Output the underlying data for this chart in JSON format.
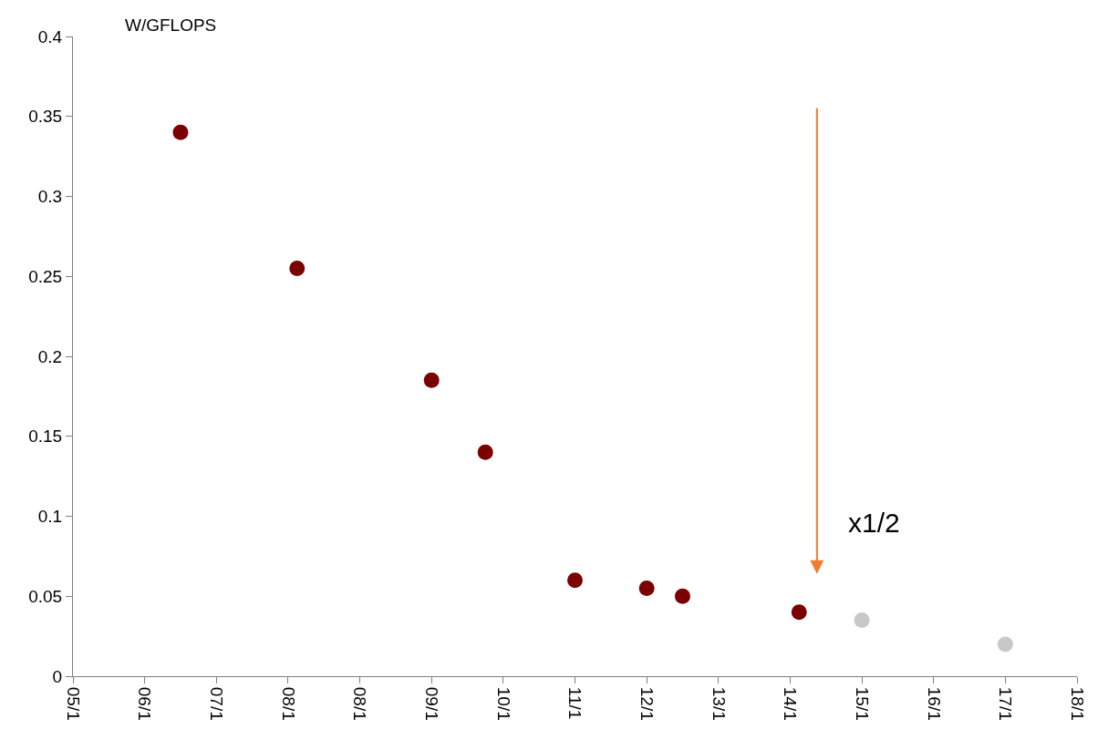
{
  "chart_data": {
    "type": "scatter",
    "ylabel": "W/GFLOPS",
    "categories": [
      "05/1",
      null,
      null,
      null,
      null,
      null,
      null,
      null,
      "06/1",
      null,
      null,
      null,
      null,
      null,
      null,
      null,
      "07/1",
      null,
      null,
      null,
      null,
      null,
      null,
      null,
      "08/1",
      null,
      null,
      null,
      null,
      null,
      null,
      null,
      "08/1",
      null,
      null,
      null,
      null,
      null,
      null,
      null,
      "09/1",
      null,
      null,
      null,
      null,
      null,
      null,
      null,
      "10/1",
      null,
      null,
      null,
      null,
      null,
      null,
      null,
      "11/1",
      null,
      null,
      null,
      null,
      null,
      null,
      null,
      "12/1",
      null,
      null,
      null,
      null,
      null,
      null,
      null,
      "13/1",
      null,
      null,
      null,
      null,
      null,
      null,
      null,
      "14/1",
      null,
      null,
      null,
      null,
      null,
      null,
      null,
      "15/1",
      null,
      null,
      null,
      null,
      null,
      null,
      null,
      "16/1",
      null,
      null,
      null,
      null,
      null,
      null,
      null,
      "17/1",
      null,
      null,
      null,
      null,
      null,
      null,
      null,
      "18/1"
    ],
    "ylim": [
      0,
      0.4
    ],
    "yticks": [
      0,
      0.05,
      0.1,
      0.15,
      0.2,
      0.25,
      0.3,
      0.35,
      0.4
    ],
    "marker": "circle",
    "series": [
      {
        "color": "#7b0000",
        "values": [
          null,
          null,
          null,
          null,
          null,
          null,
          null,
          null,
          null,
          null,
          null,
          null,
          0.34,
          null,
          null,
          null,
          null,
          null,
          null,
          null,
          null,
          null,
          null,
          null,
          null,
          0.255,
          null,
          null,
          null,
          null,
          null,
          null,
          null,
          null,
          null,
          null,
          null,
          null,
          null,
          null,
          0.185,
          null,
          null,
          null,
          null,
          null,
          0.14,
          null,
          null,
          null,
          null,
          null,
          null,
          null,
          null,
          null,
          0.06,
          null,
          null,
          null,
          null,
          null,
          null,
          null,
          0.055,
          null,
          null,
          null,
          0.05,
          null,
          null,
          null,
          null,
          null,
          null,
          null,
          null,
          null,
          null,
          null,
          null,
          0.04,
          null,
          null,
          null,
          null,
          null,
          null,
          null,
          null,
          null,
          null,
          null,
          null,
          null,
          null,
          null,
          null,
          null,
          null,
          null,
          null,
          null,
          null,
          null,
          null,
          null,
          null,
          null,
          null,
          null,
          null,
          null
        ]
      },
      {
        "color": "#c8c8c8",
        "values": [
          null,
          null,
          null,
          null,
          null,
          null,
          null,
          null,
          null,
          null,
          null,
          null,
          null,
          null,
          null,
          null,
          null,
          null,
          null,
          null,
          null,
          null,
          null,
          null,
          null,
          null,
          null,
          null,
          null,
          null,
          null,
          null,
          null,
          null,
          null,
          null,
          null,
          null,
          null,
          null,
          null,
          null,
          null,
          null,
          null,
          null,
          null,
          null,
          null,
          null,
          null,
          null,
          null,
          null,
          null,
          null,
          null,
          null,
          null,
          null,
          null,
          null,
          null,
          null,
          null,
          null,
          null,
          null,
          null,
          null,
          null,
          null,
          null,
          null,
          null,
          null,
          null,
          null,
          null,
          null,
          null,
          null,
          null,
          null,
          null,
          null,
          null,
          null,
          0.035,
          null,
          null,
          null,
          null,
          null,
          null,
          null,
          null,
          null,
          null,
          null,
          null,
          null,
          null,
          null,
          0.02,
          null,
          null,
          null,
          null,
          null,
          null,
          null,
          null
        ]
      }
    ],
    "annotations": [
      "x1/2"
    ]
  }
}
